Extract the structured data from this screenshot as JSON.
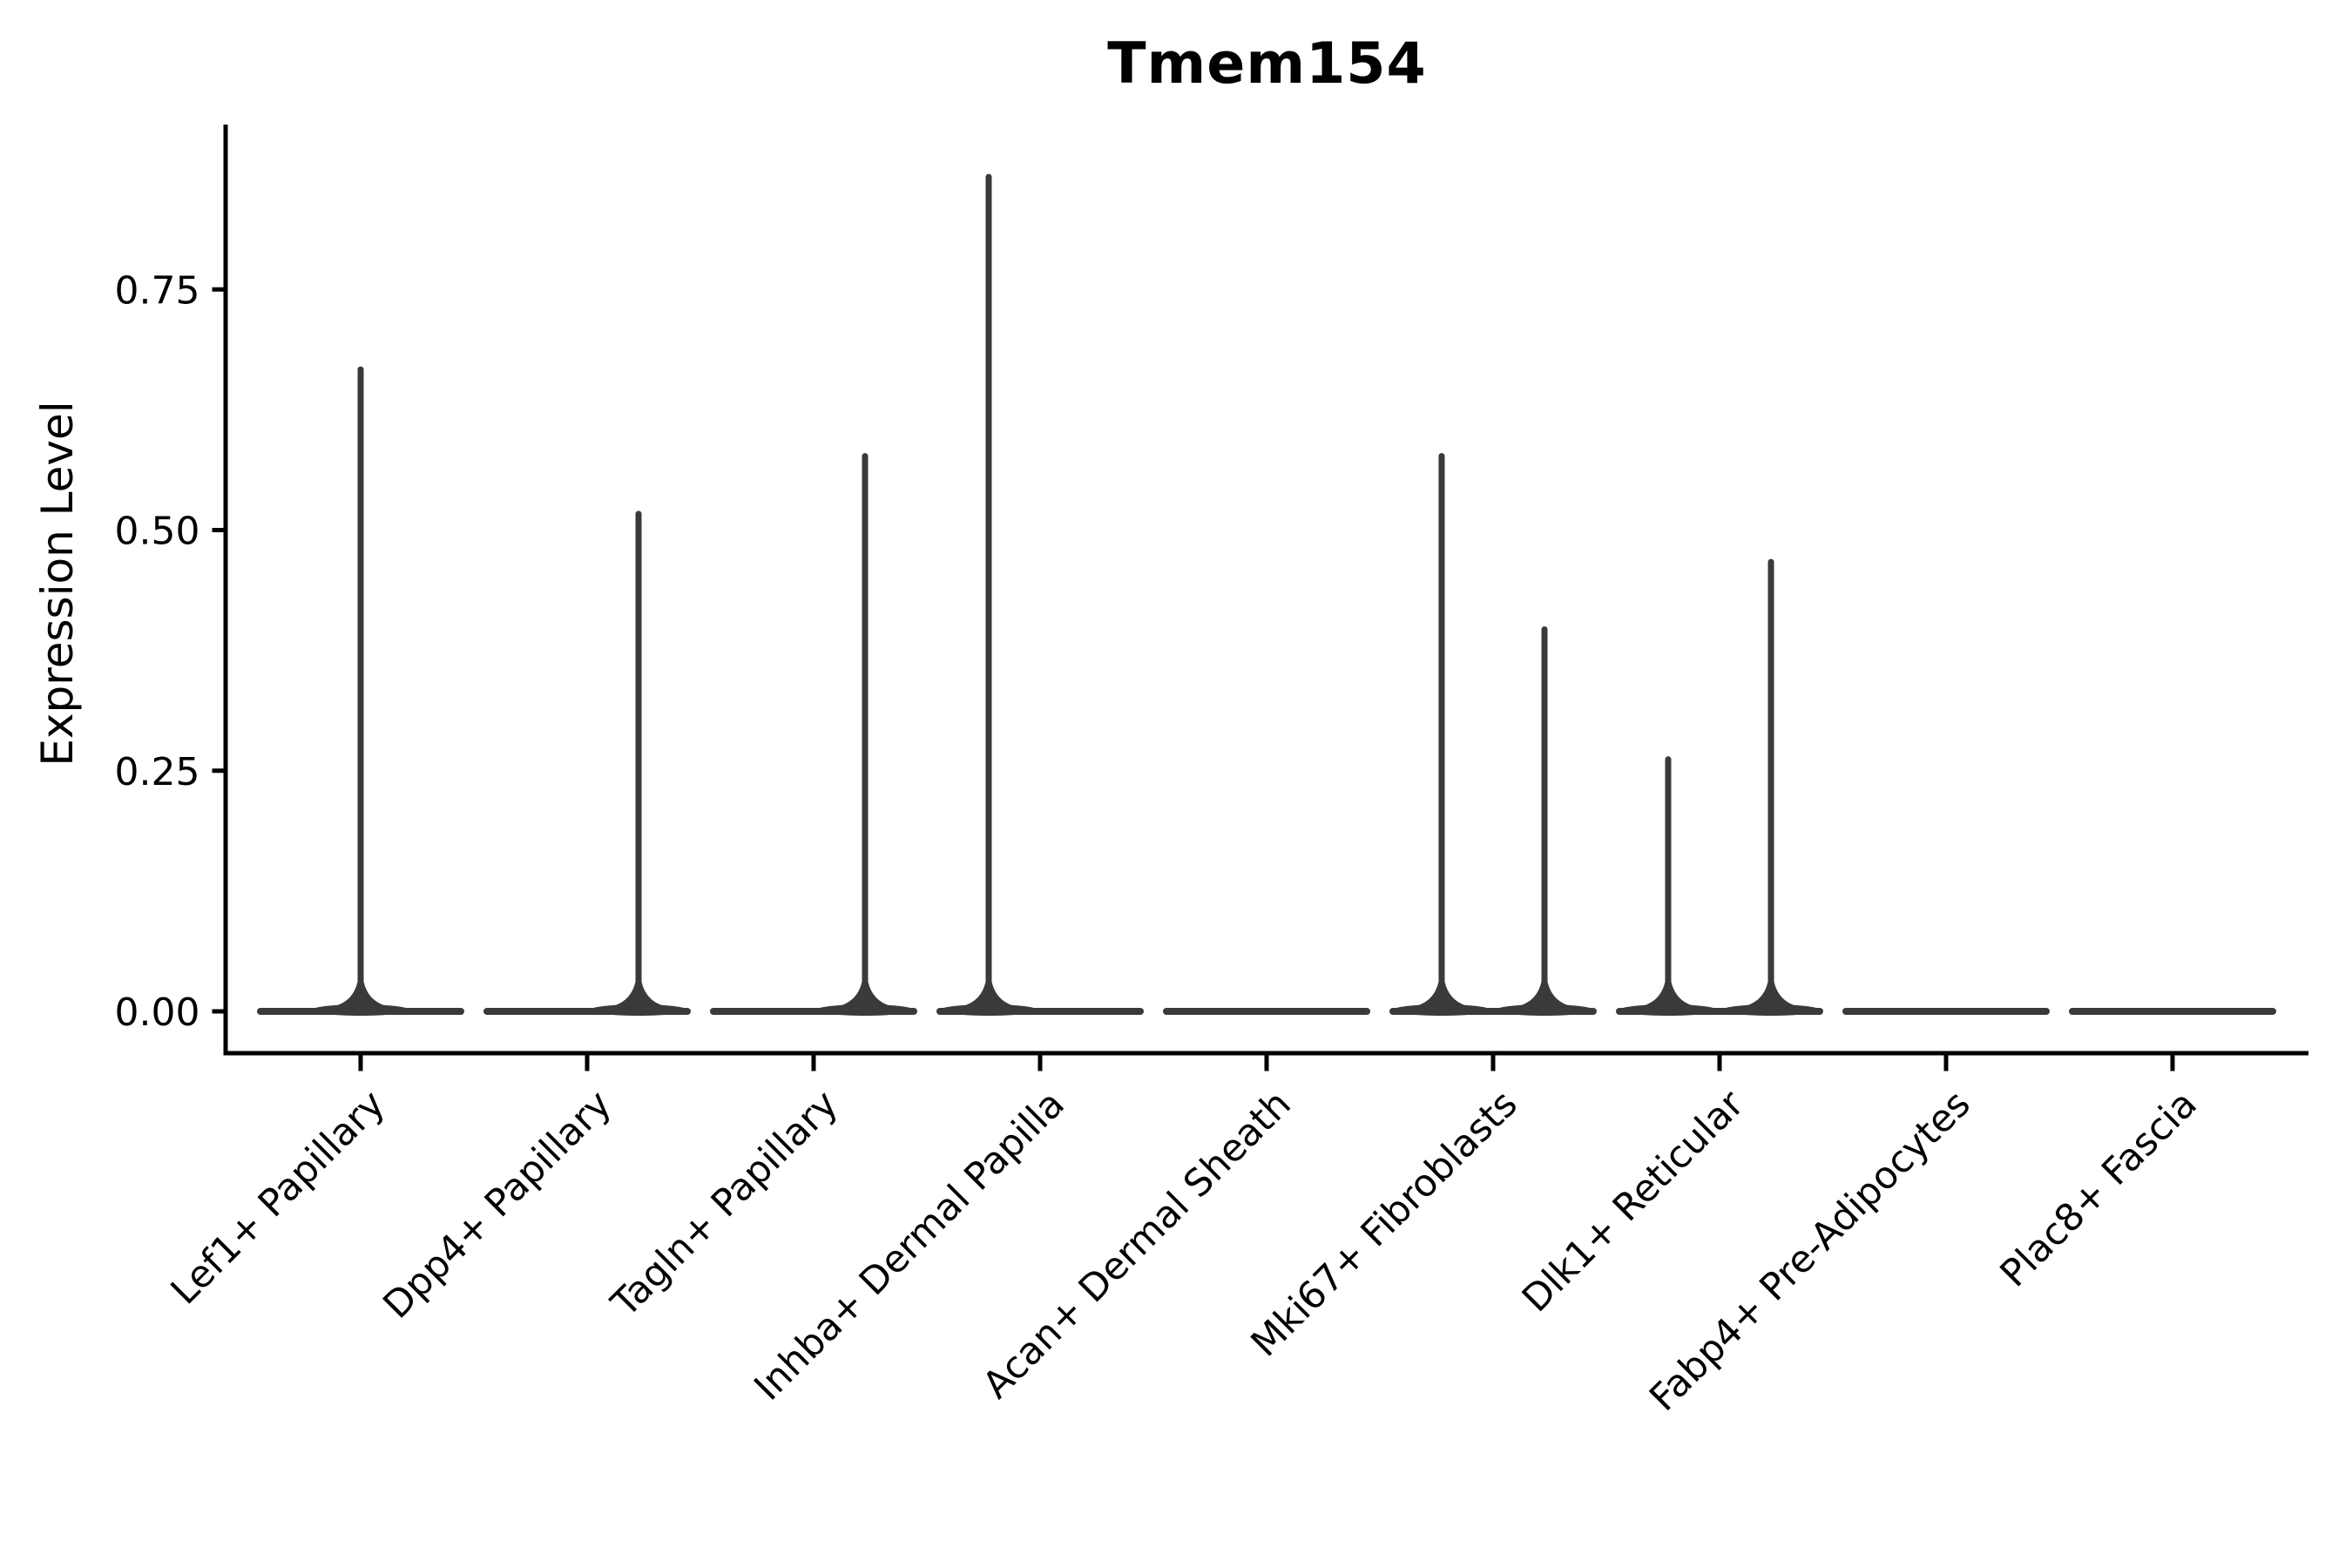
{
  "title": "Tmem154",
  "chart_data": {
    "type": "violin",
    "title": "Tmem154",
    "xlabel": "",
    "ylabel": "Expression Level",
    "categories": [
      "Lef1+ Papillary",
      "Dpp4+ Papillary",
      "Tagln+ Papillary",
      "Inhba+ Dermal Papilla",
      "Acan+ Dermal Sheath",
      "Mki67+ Fibroblasts",
      "Dlk1+ Reticular",
      "Fabp4+ Pre-Adipocytes",
      "Plac8+ Fascia"
    ],
    "y_ticks": [
      0.0,
      0.25,
      0.5,
      0.75
    ],
    "y_tick_labels": [
      "0.00",
      "0.25",
      "0.50",
      "0.75"
    ],
    "ylim": [
      0,
      0.92
    ],
    "grid": false,
    "legend": "none",
    "x_label_rotation_deg": 45,
    "violins": [
      {
        "category": "Lef1+ Papillary",
        "baseline": 0,
        "spikes": [
          {
            "offset_frac": 0.0,
            "max": 0.67
          }
        ]
      },
      {
        "category": "Dpp4+ Papillary",
        "baseline": 0,
        "spikes": [
          {
            "offset_frac": 0.227,
            "max": 0.52
          }
        ]
      },
      {
        "category": "Tagln+ Papillary",
        "baseline": 0,
        "spikes": [
          {
            "offset_frac": 0.227,
            "max": 0.58
          }
        ]
      },
      {
        "category": "Inhba+ Dermal Papilla",
        "baseline": 0,
        "spikes": [
          {
            "offset_frac": -0.227,
            "max": 0.87
          }
        ]
      },
      {
        "category": "Acan+ Dermal Sheath",
        "baseline": 0,
        "spikes": []
      },
      {
        "category": "Mki67+ Fibroblasts",
        "baseline": 0,
        "spikes": [
          {
            "offset_frac": -0.227,
            "max": 0.58
          },
          {
            "offset_frac": 0.227,
            "max": 0.4
          }
        ]
      },
      {
        "category": "Dlk1+ Reticular",
        "baseline": 0,
        "spikes": [
          {
            "offset_frac": -0.227,
            "max": 0.265
          },
          {
            "offset_frac": 0.227,
            "max": 0.47
          }
        ]
      },
      {
        "category": "Fabp4+ Pre-Adipocytes",
        "baseline": 0,
        "spikes": []
      },
      {
        "category": "Plac8+ Fascia",
        "baseline": 0,
        "spikes": []
      }
    ],
    "colors": {
      "violin": "#3a3a3a",
      "axis": "#000000",
      "text": "#000000",
      "background": "#ffffff"
    }
  }
}
